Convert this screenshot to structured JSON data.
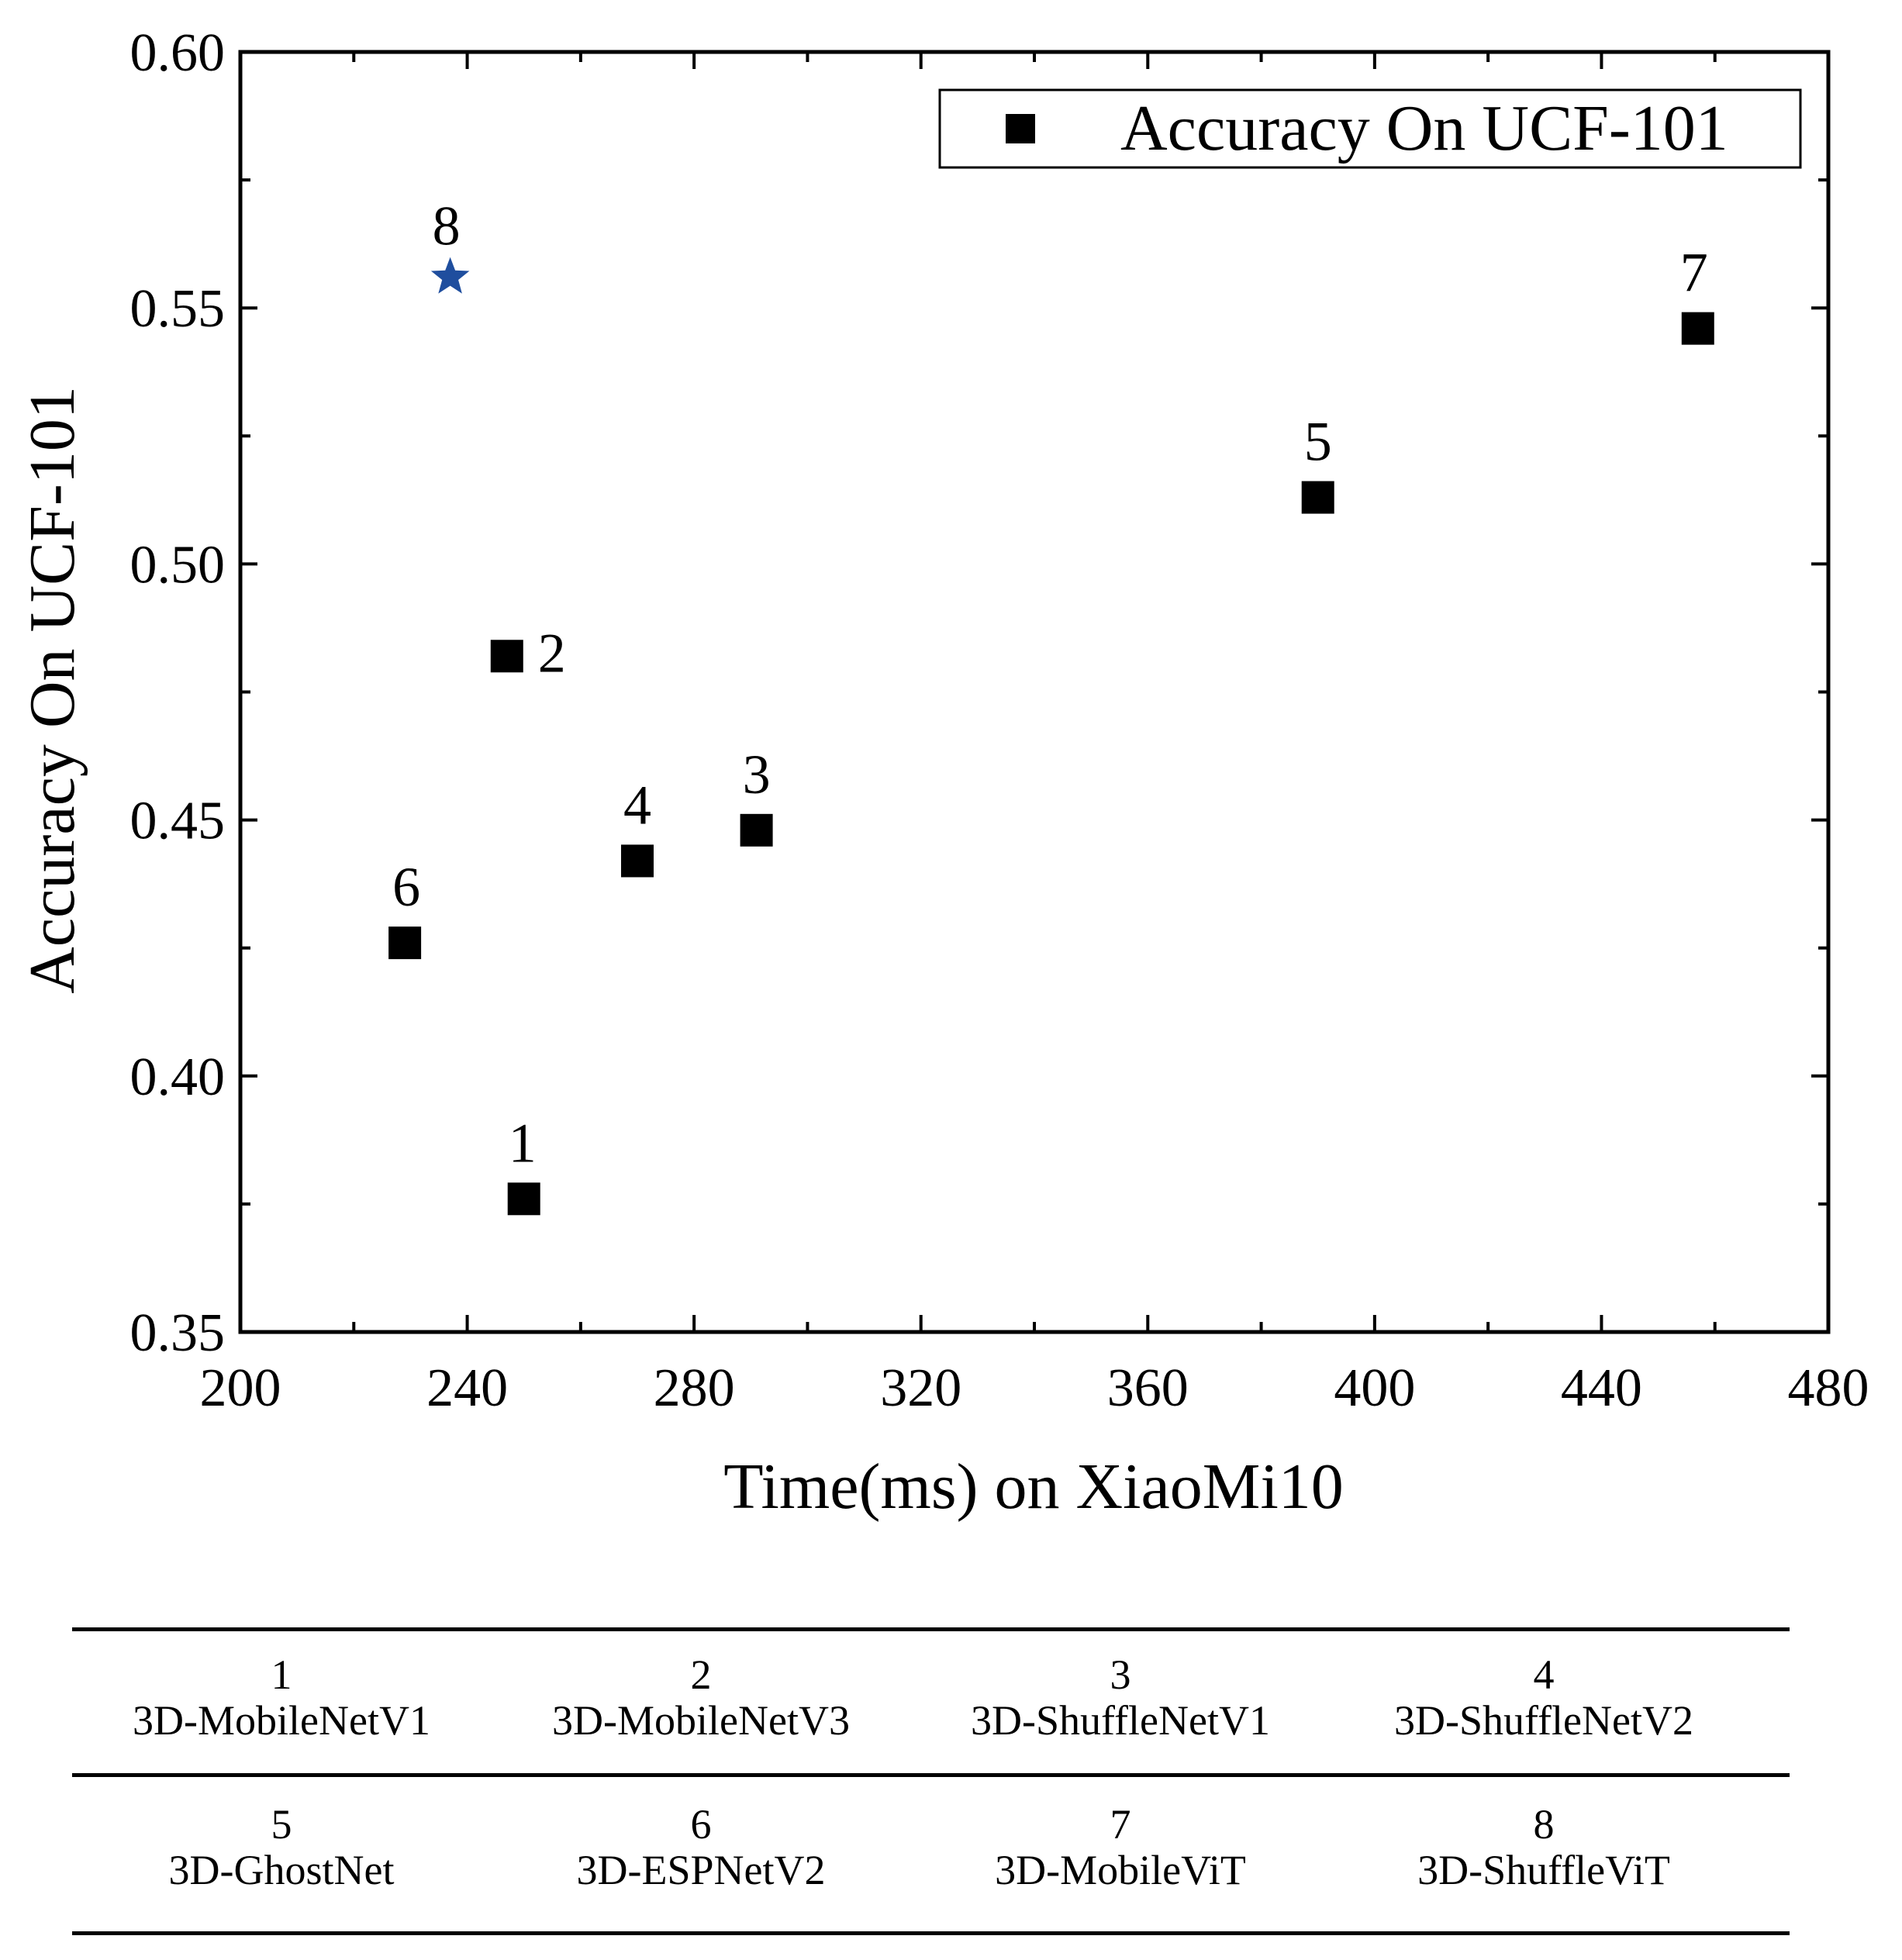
{
  "chart_data": {
    "type": "scatter",
    "title": "",
    "xlabel": "Time(ms) on XiaoMi10",
    "ylabel": "Accuracy On UCF-101",
    "xlim": [
      200,
      480
    ],
    "ylim": [
      0.35,
      0.6
    ],
    "x_ticks": [
      "200",
      "240",
      "280",
      "320",
      "360",
      "400",
      "440",
      "480"
    ],
    "y_ticks": [
      "0.35",
      "0.40",
      "0.45",
      "0.50",
      "0.55",
      "0.60"
    ],
    "grid": false,
    "legend": {
      "placement": "top-right",
      "entries": [
        "Accuracy On UCF-101"
      ]
    },
    "series": [
      {
        "name": "Accuracy On UCF-101",
        "marker": "square",
        "color": "#000000",
        "points": [
          {
            "label": "1",
            "x": 250,
            "y": 0.376
          },
          {
            "label": "2",
            "x": 247,
            "y": 0.482
          },
          {
            "label": "3",
            "x": 291,
            "y": 0.448
          },
          {
            "label": "4",
            "x": 270,
            "y": 0.442
          },
          {
            "label": "5",
            "x": 390,
            "y": 0.513
          },
          {
            "label": "6",
            "x": 229,
            "y": 0.426
          },
          {
            "label": "7",
            "x": 457,
            "y": 0.546
          }
        ]
      },
      {
        "name": "3D-ShuffleViT",
        "marker": "star",
        "color": "#1f4e9e",
        "points": [
          {
            "label": "8",
            "x": 237,
            "y": 0.556
          }
        ]
      }
    ]
  },
  "model_key": {
    "rows": [
      [
        {
          "num": "1",
          "name": "3D-MobileNetV1"
        },
        {
          "num": "2",
          "name": "3D-MobileNetV3"
        },
        {
          "num": "3",
          "name": "3D-ShuffleNetV1"
        },
        {
          "num": "4",
          "name": "3D-ShuffleNetV2"
        }
      ],
      [
        {
          "num": "5",
          "name": "3D-GhostNet"
        },
        {
          "num": "6",
          "name": "3D-ESPNetV2"
        },
        {
          "num": "7",
          "name": "3D-MobileViT"
        },
        {
          "num": "8",
          "name": "3D-ShuffleViT"
        }
      ]
    ]
  }
}
